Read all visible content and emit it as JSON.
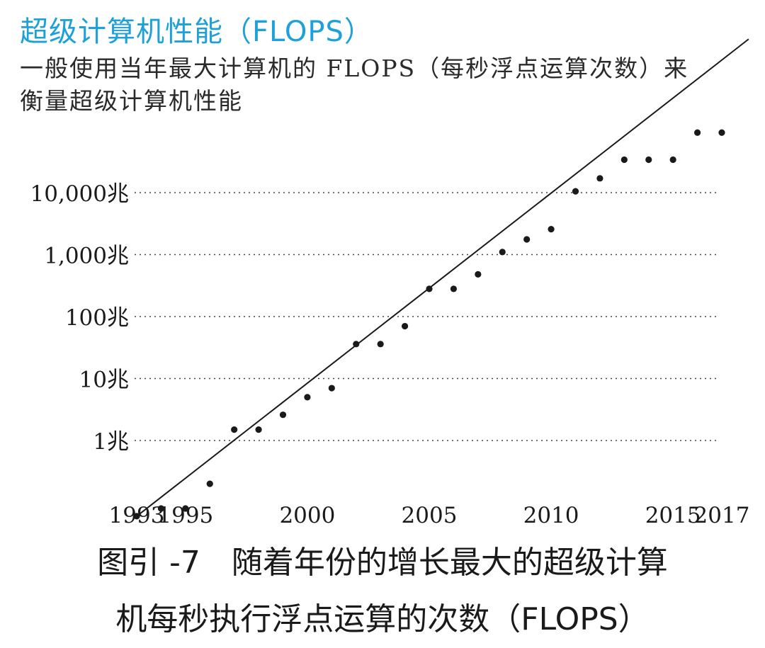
{
  "colors": {
    "title": "#1ea0d8",
    "ink": "#1a1a1a",
    "grid": "#444444"
  },
  "header": {
    "title": "超级计算机性能（FLOPS）",
    "subtitle": "一般使用当年最大计算机的 FLOPS（每秒浮点运算次数）来衡量超级计算机性能"
  },
  "caption": {
    "line1": "图引 -7　随着年份的增长最大的超级计算",
    "line2": "机每秒执行浮点运算的次数（FLOPS）"
  },
  "chart_data": {
    "type": "scatter",
    "title": "超级计算机性能（FLOPS）",
    "xlabel": "",
    "ylabel": "",
    "yscale": "log",
    "unit": "兆 FLOPS",
    "xlim": [
      1993,
      2017
    ],
    "ylim": [
      0.06,
      3000000
    ],
    "x_ticks": [
      1993,
      1995,
      2000,
      2005,
      2010,
      2015,
      2017
    ],
    "y_ticks": [
      {
        "value": 1,
        "label": "1兆"
      },
      {
        "value": 10,
        "label": "10兆"
      },
      {
        "value": 100,
        "label": "100兆"
      },
      {
        "value": 1000,
        "label": "1,000兆"
      },
      {
        "value": 10000,
        "label": "10,000兆"
      }
    ],
    "grid": "horizontal dotted",
    "points": [
      {
        "x": 1993,
        "y": 0.06
      },
      {
        "x": 1994,
        "y": 0.08
      },
      {
        "x": 1995,
        "y": 0.08
      },
      {
        "x": 1996,
        "y": 0.2
      },
      {
        "x": 1997,
        "y": 1.5
      },
      {
        "x": 1998,
        "y": 1.5
      },
      {
        "x": 1999,
        "y": 2.6
      },
      {
        "x": 2000,
        "y": 5
      },
      {
        "x": 2001,
        "y": 7
      },
      {
        "x": 2002,
        "y": 36
      },
      {
        "x": 2003,
        "y": 36
      },
      {
        "x": 2004,
        "y": 70
      },
      {
        "x": 2005,
        "y": 280
      },
      {
        "x": 2006,
        "y": 280
      },
      {
        "x": 2007,
        "y": 480
      },
      {
        "x": 2008,
        "y": 1100
      },
      {
        "x": 2009,
        "y": 1760
      },
      {
        "x": 2010,
        "y": 2570
      },
      {
        "x": 2011,
        "y": 10500
      },
      {
        "x": 2012,
        "y": 17000
      },
      {
        "x": 2013,
        "y": 34000
      },
      {
        "x": 2014,
        "y": 34000
      },
      {
        "x": 2015,
        "y": 34000
      },
      {
        "x": 2016,
        "y": 93000
      },
      {
        "x": 2017,
        "y": 93000
      }
    ],
    "trend_line": {
      "x": [
        1993,
        2018.1
      ],
      "y": [
        0.06,
        3000000
      ]
    }
  }
}
